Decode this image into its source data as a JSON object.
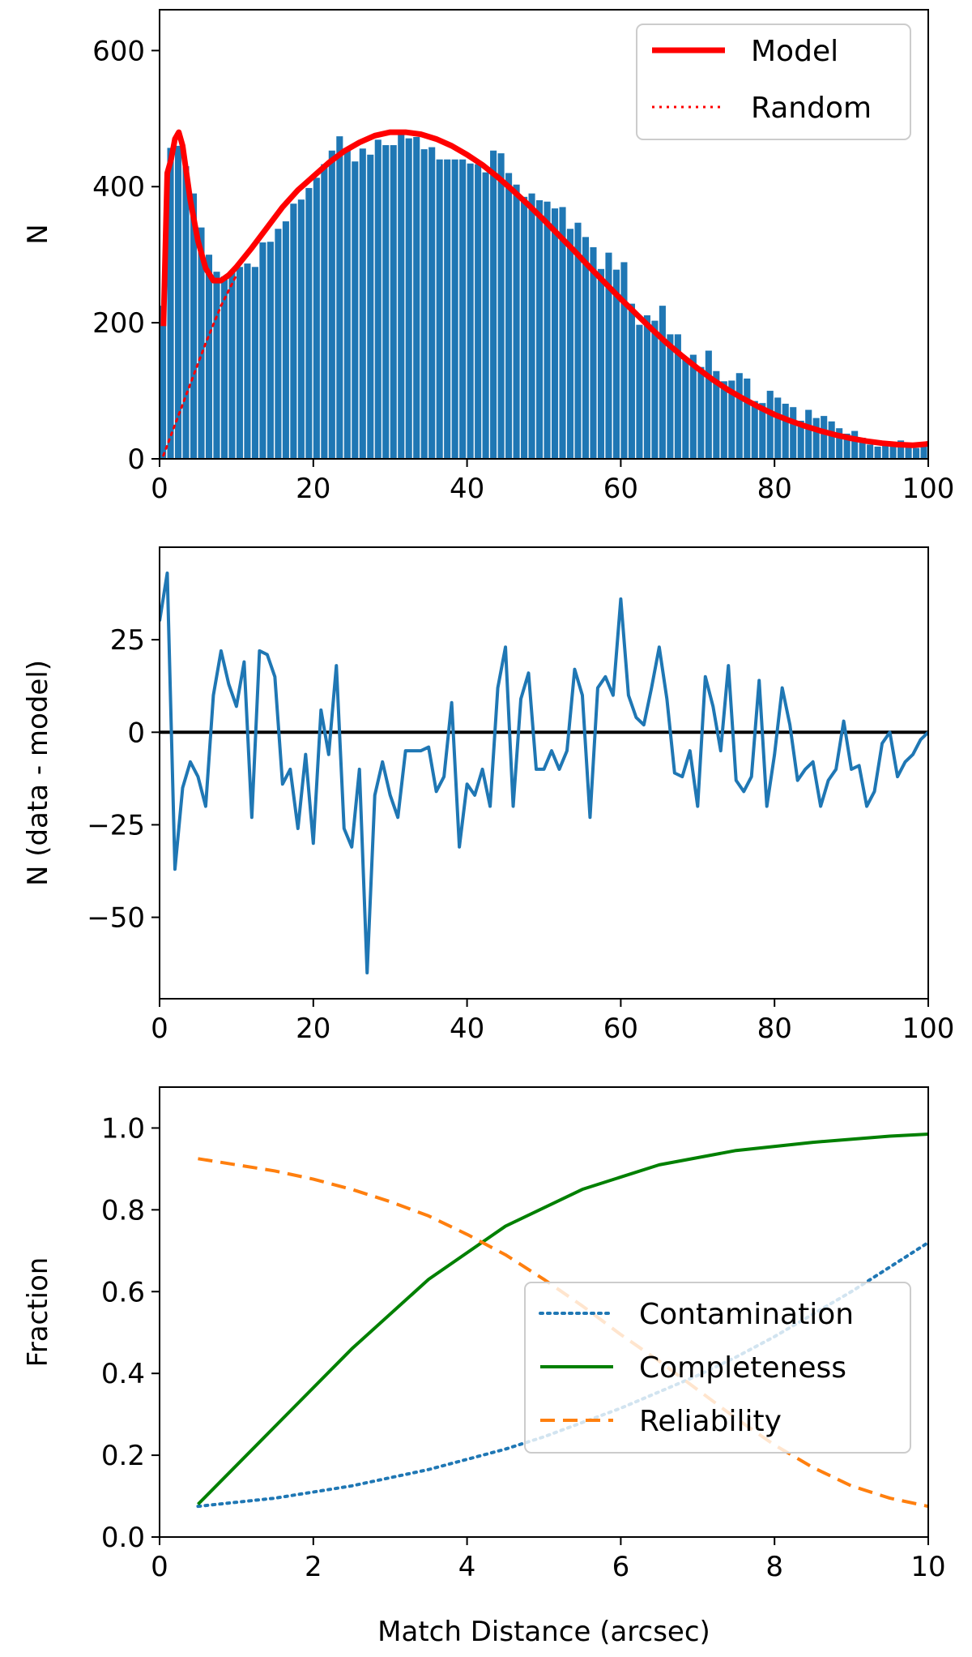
{
  "chart_data": [
    {
      "type": "bar",
      "panel": "histogram",
      "xlabel": "",
      "ylabel": "N",
      "xlim": [
        0,
        100
      ],
      "ylim": [
        0,
        660
      ],
      "xticks": [
        0,
        20,
        40,
        60,
        80,
        100
      ],
      "yticks": [
        0,
        200,
        400,
        600
      ],
      "bin_width": 1,
      "bars_x": [
        0,
        1,
        2,
        3,
        4,
        5,
        6,
        7,
        8,
        9,
        10,
        11,
        12,
        13,
        14,
        15,
        16,
        17,
        18,
        19,
        20,
        21,
        22,
        23,
        24,
        25,
        26,
        27,
        28,
        29,
        30,
        31,
        32,
        33,
        34,
        35,
        36,
        37,
        38,
        39,
        40,
        41,
        42,
        43,
        44,
        45,
        46,
        47,
        48,
        49,
        50,
        51,
        52,
        53,
        54,
        55,
        56,
        57,
        58,
        59,
        60,
        61,
        62,
        63,
        64,
        65,
        66,
        67,
        68,
        69,
        70,
        71,
        72,
        73,
        74,
        75,
        76,
        77,
        78,
        79,
        80,
        81,
        82,
        83,
        84,
        85,
        86,
        87,
        88,
        89,
        90,
        91,
        92,
        93,
        94,
        95,
        96,
        97,
        98,
        99
      ],
      "bars_values": [
        225,
        457,
        460,
        430,
        390,
        340,
        300,
        275,
        268,
        275,
        282,
        287,
        282,
        318,
        319,
        338,
        349,
        375,
        381,
        398,
        413,
        433,
        453,
        474,
        454,
        437,
        456,
        447,
        469,
        461,
        461,
        477,
        471,
        473,
        455,
        458,
        440,
        440,
        440,
        440,
        434,
        433,
        421,
        453,
        449,
        420,
        403,
        385,
        390,
        380,
        378,
        368,
        370,
        338,
        347,
        326,
        311,
        279,
        303,
        278,
        289,
        228,
        197,
        211,
        203,
        225,
        183,
        183,
        147,
        153,
        135,
        159,
        129,
        114,
        115,
        126,
        118,
        85,
        82,
        100,
        90,
        81,
        76,
        56,
        72,
        60,
        63,
        55,
        45,
        37,
        41,
        31,
        21,
        18,
        26,
        18,
        27,
        17,
        16,
        20
      ],
      "series": [
        {
          "name": "Model",
          "style": "solid",
          "color": "#ff0000",
          "x": [
            0.5,
            1,
            1.5,
            2,
            2.5,
            3,
            3.5,
            4,
            5,
            6,
            7,
            8,
            9,
            10,
            12,
            14,
            16,
            18,
            20,
            22,
            24,
            26,
            28,
            30,
            32,
            34,
            36,
            38,
            40,
            42,
            44,
            46,
            48,
            50,
            52,
            54,
            56,
            58,
            60,
            62,
            64,
            66,
            68,
            70,
            72,
            74,
            76,
            78,
            80,
            82,
            84,
            86,
            88,
            90,
            92,
            94,
            96,
            98,
            100
          ],
          "y": [
            195,
            420,
            440,
            470,
            480,
            460,
            420,
            380,
            320,
            280,
            262,
            262,
            270,
            282,
            310,
            340,
            370,
            395,
            415,
            435,
            452,
            465,
            475,
            480,
            480,
            477,
            470,
            460,
            447,
            432,
            414,
            394,
            373,
            351,
            328,
            305,
            281,
            258,
            235,
            213,
            191,
            170,
            151,
            133,
            116,
            101,
            88,
            76,
            65,
            56,
            48,
            41,
            35,
            30,
            26,
            23,
            21,
            20,
            22
          ]
        },
        {
          "name": "Random",
          "style": "dotted",
          "color": "#ff0000",
          "x": [
            0.5,
            2,
            4,
            6,
            8,
            10
          ],
          "y": [
            5,
            50,
            110,
            170,
            225,
            270
          ]
        }
      ]
    },
    {
      "type": "line",
      "panel": "residuals",
      "xlabel": "",
      "ylabel": "N (data - model)",
      "xlim": [
        0,
        100
      ],
      "ylim": [
        -72,
        50
      ],
      "xticks": [
        0,
        20,
        40,
        60,
        80,
        100
      ],
      "yticks": [
        -50,
        -25,
        0,
        25
      ],
      "zero_line": 0,
      "series": [
        {
          "name": "data - model",
          "color": "#1f77b4",
          "x": [
            0,
            1,
            2,
            3,
            4,
            5,
            6,
            7,
            8,
            9,
            10,
            11,
            12,
            13,
            14,
            15,
            16,
            17,
            18,
            19,
            20,
            21,
            22,
            23,
            24,
            25,
            26,
            27,
            28,
            29,
            30,
            31,
            32,
            33,
            34,
            35,
            36,
            37,
            38,
            39,
            40,
            41,
            42,
            43,
            44,
            45,
            46,
            47,
            48,
            49,
            50,
            51,
            52,
            53,
            54,
            55,
            56,
            57,
            58,
            59,
            60,
            61,
            62,
            63,
            64,
            65,
            66,
            67,
            68,
            69,
            70,
            71,
            72,
            73,
            74,
            75,
            76,
            77,
            78,
            79,
            80,
            81,
            82,
            83,
            84,
            85,
            86,
            87,
            88,
            89,
            90,
            91,
            92,
            93,
            94,
            95,
            96,
            97,
            98,
            99,
            100
          ],
          "y": [
            30,
            43,
            -37,
            -15,
            -8,
            -12,
            -20,
            10,
            22,
            13,
            7,
            19,
            -23,
            22,
            21,
            15,
            -14,
            -10,
            -26,
            -6,
            -30,
            6,
            -6,
            18,
            -26,
            -31,
            -10,
            -65,
            -17,
            -8,
            -17,
            -23,
            -5,
            -5,
            -5,
            -4,
            -16,
            -12,
            8,
            -31,
            -14,
            -17,
            -10,
            -20,
            12,
            23,
            -20,
            9,
            16,
            -10,
            -10,
            -5,
            -10,
            -5,
            17,
            10,
            -23,
            12,
            15,
            10,
            36,
            10,
            4,
            2,
            12,
            23,
            9,
            -11,
            -12,
            -5,
            -20,
            15,
            7,
            -5,
            18,
            -13,
            -16,
            -12,
            14,
            -20,
            -6,
            12,
            2,
            -13,
            -10,
            -8,
            -20,
            -13,
            -10,
            3,
            -10,
            -9,
            -20,
            -16,
            -3,
            0,
            -12,
            -8,
            -6,
            -2,
            0
          ]
        }
      ]
    },
    {
      "type": "line",
      "panel": "fractions",
      "xlabel": "Match Distance (arcsec)",
      "ylabel": "Fraction",
      "xlim": [
        0,
        10
      ],
      "ylim": [
        0.0,
        1.1
      ],
      "xticks": [
        0,
        2,
        4,
        6,
        8,
        10
      ],
      "yticks": [
        0.0,
        0.2,
        0.4,
        0.6,
        0.8,
        1.0
      ],
      "legend_position": "bottom-right",
      "series": [
        {
          "name": "Contamination",
          "style": "dotted",
          "color": "#1f77b4",
          "x": [
            0.5,
            1,
            1.5,
            2,
            2.5,
            3,
            3.5,
            4,
            4.5,
            5,
            5.5,
            6,
            6.5,
            7,
            7.5,
            8,
            8.5,
            9,
            9.5,
            10
          ],
          "y": [
            0.075,
            0.085,
            0.095,
            0.11,
            0.125,
            0.145,
            0.165,
            0.19,
            0.215,
            0.245,
            0.28,
            0.315,
            0.355,
            0.395,
            0.44,
            0.49,
            0.545,
            0.6,
            0.66,
            0.72
          ]
        },
        {
          "name": "Completeness",
          "style": "solid",
          "color": "#008000",
          "x": [
            0.5,
            1.5,
            2.5,
            3.5,
            4.5,
            5.5,
            6.5,
            7.5,
            8.5,
            9.5,
            10
          ],
          "y": [
            0.08,
            0.27,
            0.46,
            0.63,
            0.76,
            0.85,
            0.91,
            0.945,
            0.965,
            0.98,
            0.985
          ]
        },
        {
          "name": "Reliability",
          "style": "dashed",
          "color": "#ff7f0e",
          "x": [
            0.5,
            1,
            1.5,
            2,
            2.5,
            3,
            3.5,
            4,
            4.5,
            5,
            5.5,
            6,
            6.5,
            7,
            7.5,
            8,
            8.5,
            9,
            9.5,
            10
          ],
          "y": [
            0.925,
            0.91,
            0.895,
            0.875,
            0.85,
            0.82,
            0.785,
            0.74,
            0.69,
            0.63,
            0.565,
            0.495,
            0.43,
            0.36,
            0.29,
            0.225,
            0.17,
            0.125,
            0.095,
            0.075
          ]
        }
      ]
    }
  ]
}
